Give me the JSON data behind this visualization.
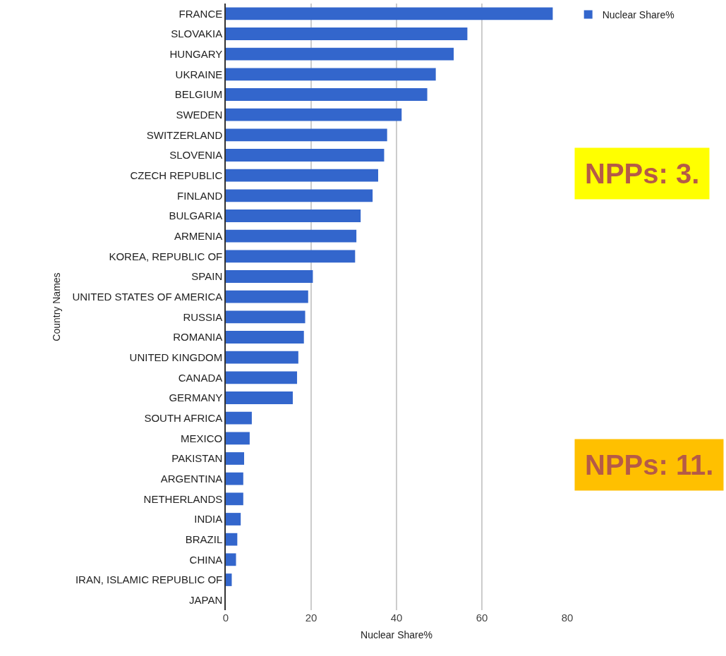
{
  "chart_data": {
    "type": "bar",
    "orientation": "horizontal",
    "categories": [
      "FRANCE",
      "SLOVAKIA",
      "HUNGARY",
      "UKRAINE",
      "BELGIUM",
      "SWEDEN",
      "SWITZERLAND",
      "SLOVENIA",
      "CZECH REPUBLIC",
      "FINLAND",
      "BULGARIA",
      "ARMENIA",
      "KOREA, REPUBLIC OF",
      "SPAIN",
      "UNITED STATES OF AMERICA",
      "RUSSIA",
      "ROMANIA",
      "UNITED KINGDOM",
      "CANADA",
      "GERMANY",
      "SOUTH AFRICA",
      "MEXICO",
      "PAKISTAN",
      "ARGENTINA",
      "NETHERLANDS",
      "INDIA",
      "BRAZIL",
      "CHINA",
      "IRAN, ISLAMIC REPUBLIC OF",
      "JAPAN"
    ],
    "series": [
      {
        "name": "Nuclear Share%",
        "color": "#3366cc",
        "values": [
          76.6,
          56.6,
          53.4,
          49.2,
          47.2,
          41.2,
          37.8,
          37.1,
          35.7,
          34.4,
          31.6,
          30.6,
          30.3,
          20.4,
          19.3,
          18.6,
          18.3,
          17.0,
          16.7,
          15.7,
          6.1,
          5.6,
          4.3,
          4.1,
          4.1,
          3.5,
          2.7,
          2.4,
          1.4,
          0
        ]
      }
    ],
    "xlabel": "Nuclear Share%",
    "ylabel": "Country Names",
    "xlim": [
      0,
      80
    ],
    "xticks": [
      0,
      20,
      40,
      60,
      80
    ],
    "grid": "x",
    "legend": "top right",
    "annotations": [
      "NPPs: 3.",
      "NPPs: 11."
    ]
  }
}
